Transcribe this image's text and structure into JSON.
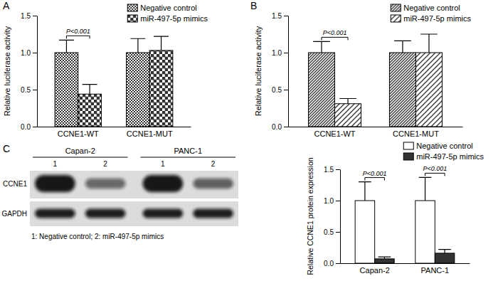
{
  "chart_data": [
    {
      "type": "bar",
      "title": "A",
      "y_label": "Relative luciferase activity",
      "categories": [
        "CCNE1-WT",
        "CCNE1-MUT"
      ],
      "series": [
        {
          "name": "Negative control",
          "color": "#333333",
          "values": [
            1.0,
            1.0
          ],
          "errors": [
            0.17,
            0.19
          ]
        },
        {
          "name": "miR-497-5p mimics",
          "color": "#333333",
          "values": [
            0.44,
            1.03
          ],
          "errors": [
            0.13,
            0.19
          ]
        }
      ],
      "ylim": [
        0,
        1.5
      ],
      "yticks": [
        {
          "value": 0,
          "label": "0.0"
        },
        0.5,
        {
          "value": 1,
          "label": "1.0"
        },
        1.5
      ],
      "legend": "upper right",
      "annotations": [
        {
          "text": "P<0.001",
          "category": "CCNE1-WT"
        }
      ]
    },
    {
      "type": "bar",
      "title": "B",
      "y_label": "Relative luciferase activity",
      "categories": [
        "CCNE1-WT",
        "CCNE1-MUT"
      ],
      "series": [
        {
          "name": "Negative control",
          "color": "#333333",
          "values": [
            1.0,
            1.0
          ],
          "errors": [
            0.15,
            0.16
          ]
        },
        {
          "name": "miR-497-5p mimics",
          "color": "#333333",
          "values": [
            0.31,
            1.0
          ],
          "errors": [
            0.07,
            0.25
          ]
        }
      ],
      "ylim": [
        0,
        1.5
      ],
      "yticks": [
        {
          "value": 0,
          "label": "0.0"
        },
        0.5,
        {
          "value": 1,
          "label": "1.0"
        },
        1.5
      ],
      "legend": "upper right",
      "annotations": [
        {
          "text": "P<0.001",
          "category": "CCNE1-WT"
        }
      ]
    },
    {
      "type": "bar",
      "y_label": "Relative CCNE1 protein expression",
      "categories": [
        "Capan-2",
        "PANC-1"
      ],
      "series": [
        {
          "name": "Negative control",
          "color": "#ffffff",
          "values": [
            1.0,
            1.0
          ],
          "errors": [
            0.3,
            0.37
          ]
        },
        {
          "name": "miR-497-5p mimics",
          "color": "#333333",
          "values": [
            0.07,
            0.16
          ],
          "errors": [
            0.03,
            0.06
          ]
        }
      ],
      "ylim": [
        0,
        1.5
      ],
      "yticks": [
        {
          "value": 0,
          "label": "0.0"
        },
        0.5,
        {
          "value": 1,
          "label": "1.0"
        },
        1.5
      ],
      "legend": "upper right",
      "annotations": [
        {
          "text": "P<0.001",
          "category": "Capan-2"
        },
        {
          "text": "P<0.001",
          "category": "PANC-1"
        }
      ]
    }
  ],
  "blot": {
    "panel": "C",
    "groups": [
      "Capan-2",
      "PANC-1"
    ],
    "lanes": [
      "1",
      "2"
    ],
    "rows": [
      "CCNE1",
      "GAPDH"
    ],
    "caption": "1: Negative control; 2: miR-497-5p mimics"
  }
}
